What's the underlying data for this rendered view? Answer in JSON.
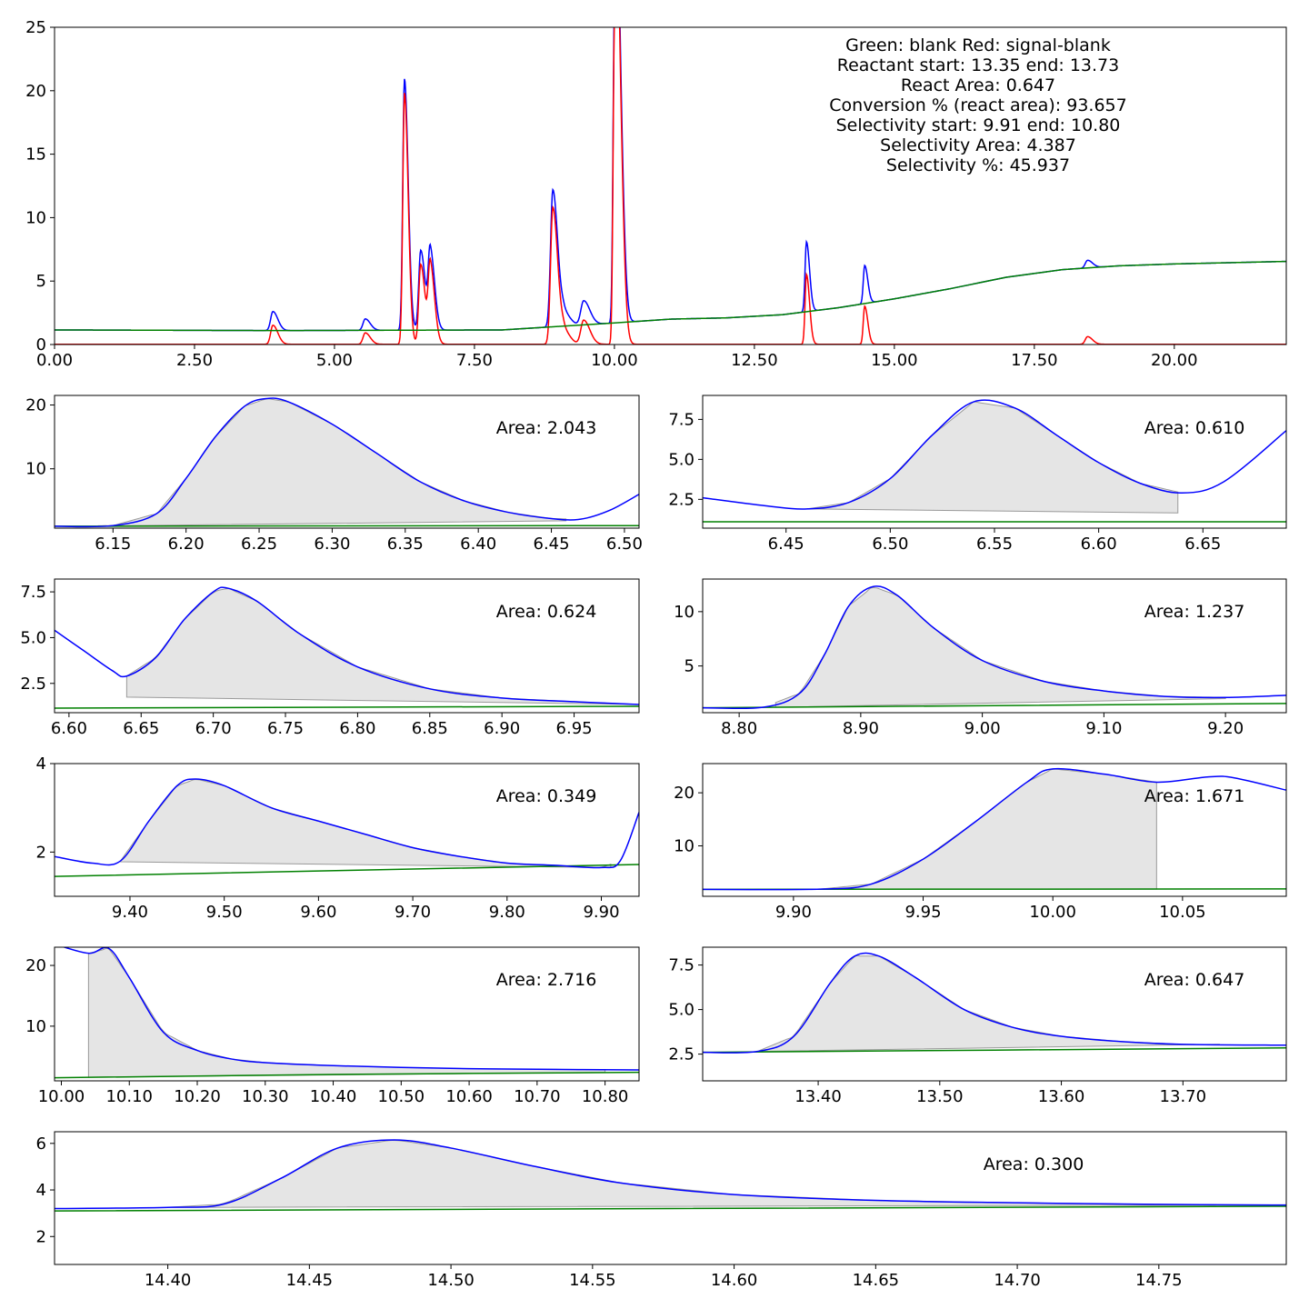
{
  "chart_data": [
    {
      "type": "line",
      "id": "overview",
      "xlim": [
        0,
        22
      ],
      "ylim": [
        0,
        25
      ],
      "xticks": [
        0,
        2.5,
        5,
        7.5,
        10,
        12.5,
        15,
        17.5,
        20
      ],
      "xtick_labels": [
        "0.00",
        "2.50",
        "5.00",
        "7.50",
        "10.00",
        "12.50",
        "15.00",
        "17.50",
        "20.00"
      ],
      "yticks": [
        0,
        5,
        10,
        15,
        20,
        25
      ],
      "ytick_labels": [
        "0",
        "5",
        "10",
        "15",
        "20",
        "25"
      ],
      "grid": false,
      "colors": {
        "signal": "#0000ff",
        "blank": "#008000",
        "difference": "#ff0000"
      },
      "annotation": [
        "Green: blank Red: signal-blank",
        "Reactant start: 13.35  end: 13.73",
        "React Area: 0.647",
        "Conversion % (react area): 93.657",
        "Selectivity start: 9.91  end: 10.80",
        "Selectivity Area: 4.387",
        "Selectivity %: 45.937"
      ],
      "baseline": [
        [
          0,
          1.15
        ],
        [
          4,
          1.1
        ],
        [
          8,
          1.15
        ],
        [
          10,
          1.7
        ],
        [
          11,
          2.0
        ],
        [
          12,
          2.1
        ],
        [
          13,
          2.35
        ],
        [
          14,
          2.9
        ],
        [
          15,
          3.6
        ],
        [
          16,
          4.4
        ],
        [
          17,
          5.3
        ],
        [
          18,
          5.9
        ],
        [
          19,
          6.2
        ],
        [
          20,
          6.35
        ],
        [
          22,
          6.55
        ]
      ],
      "peaks": [
        {
          "t": 3.9,
          "h": 1.5,
          "w": 0.04
        },
        {
          "t": 5.55,
          "h": 0.9,
          "w": 0.04
        },
        {
          "t": 6.25,
          "h": 19.8,
          "w": 0.03
        },
        {
          "t": 6.54,
          "h": 6.3,
          "w": 0.035
        },
        {
          "t": 6.71,
          "h": 6.2,
          "w": 0.035
        },
        {
          "t": 8.9,
          "h": 10.8,
          "w": 0.04
        },
        {
          "t": 9.1,
          "h": 1.0,
          "w": 0.05
        },
        {
          "t": 9.45,
          "h": 1.9,
          "w": 0.05
        },
        {
          "t": 10.0,
          "h": 23.0,
          "w": 0.025
        },
        {
          "t": 10.07,
          "h": 20.5,
          "w": 0.035
        },
        {
          "t": 13.43,
          "h": 5.5,
          "w": 0.025
        },
        {
          "t": 14.47,
          "h": 3.0,
          "w": 0.025
        },
        {
          "t": 18.45,
          "h": 0.6,
          "w": 0.04
        }
      ]
    },
    {
      "type": "line",
      "id": "zoom-1",
      "area_label": "Area: 2.043",
      "xlim": [
        6.11,
        6.51
      ],
      "ylim": [
        0.7,
        21.5
      ],
      "xticks": [
        6.15,
        6.2,
        6.25,
        6.3,
        6.35,
        6.4,
        6.45,
        6.5
      ],
      "xtick_labels": [
        "6.15",
        "6.20",
        "6.25",
        "6.30",
        "6.35",
        "6.40",
        "6.45",
        "6.50"
      ],
      "yticks": [
        10,
        20
      ],
      "ytick_labels": [
        "10",
        "20"
      ],
      "signal": [
        [
          6.11,
          1.0
        ],
        [
          6.15,
          1.1
        ],
        [
          6.18,
          3.0
        ],
        [
          6.2,
          8.5
        ],
        [
          6.22,
          15.0
        ],
        [
          6.24,
          19.8
        ],
        [
          6.255,
          21.0
        ],
        [
          6.27,
          20.5
        ],
        [
          6.3,
          17.0
        ],
        [
          6.33,
          12.5
        ],
        [
          6.36,
          8.0
        ],
        [
          6.39,
          5.0
        ],
        [
          6.42,
          3.2
        ],
        [
          6.45,
          2.2
        ],
        [
          6.47,
          2.1
        ],
        [
          6.49,
          3.5
        ],
        [
          6.51,
          6.0
        ]
      ],
      "blank": [
        [
          6.11,
          1.0
        ],
        [
          6.51,
          1.1
        ]
      ],
      "fill_start": 6.14,
      "fill_end": 6.46,
      "fill_base": [
        1.05,
        1.85
      ]
    },
    {
      "type": "line",
      "id": "zoom-2",
      "area_label": "Area: 0.610",
      "xlim": [
        6.41,
        6.69
      ],
      "ylim": [
        0.7,
        9.0
      ],
      "xticks": [
        6.45,
        6.5,
        6.55,
        6.6,
        6.65
      ],
      "xtick_labels": [
        "6.45",
        "6.50",
        "6.55",
        "6.60",
        "6.65"
      ],
      "yticks": [
        2.5,
        5.0,
        7.5
      ],
      "ytick_labels": [
        "2.5",
        "5.0",
        "7.5"
      ],
      "signal": [
        [
          6.41,
          2.6
        ],
        [
          6.44,
          2.1
        ],
        [
          6.46,
          1.9
        ],
        [
          6.48,
          2.3
        ],
        [
          6.5,
          3.8
        ],
        [
          6.52,
          6.5
        ],
        [
          6.54,
          8.6
        ],
        [
          6.56,
          8.2
        ],
        [
          6.58,
          6.5
        ],
        [
          6.6,
          4.8
        ],
        [
          6.62,
          3.5
        ],
        [
          6.64,
          2.9
        ],
        [
          6.66,
          3.6
        ],
        [
          6.69,
          6.8
        ]
      ],
      "blank": [
        [
          6.41,
          1.1
        ],
        [
          6.69,
          1.1
        ]
      ],
      "fill_start": 6.46,
      "fill_end": 6.638,
      "fill_base": [
        1.9,
        1.65
      ]
    },
    {
      "type": "line",
      "id": "zoom-3",
      "area_label": "Area: 0.624",
      "xlim": [
        6.59,
        6.995
      ],
      "ylim": [
        0.9,
        8.2
      ],
      "xticks": [
        6.6,
        6.65,
        6.7,
        6.75,
        6.8,
        6.85,
        6.9,
        6.95
      ],
      "xtick_labels": [
        "6.60",
        "6.65",
        "6.70",
        "6.75",
        "6.80",
        "6.85",
        "6.90",
        "6.95"
      ],
      "yticks": [
        2.5,
        5.0,
        7.5
      ],
      "ytick_labels": [
        "2.5",
        "5.0",
        "7.5"
      ],
      "signal": [
        [
          6.59,
          5.4
        ],
        [
          6.61,
          4.3
        ],
        [
          6.63,
          3.2
        ],
        [
          6.64,
          2.9
        ],
        [
          6.66,
          3.9
        ],
        [
          6.68,
          6.0
        ],
        [
          6.7,
          7.5
        ],
        [
          6.71,
          7.7
        ],
        [
          6.73,
          7.0
        ],
        [
          6.76,
          5.2
        ],
        [
          6.8,
          3.4
        ],
        [
          6.85,
          2.2
        ],
        [
          6.9,
          1.7
        ],
        [
          6.95,
          1.5
        ],
        [
          6.995,
          1.35
        ]
      ],
      "blank": [
        [
          6.59,
          1.15
        ],
        [
          6.995,
          1.25
        ]
      ],
      "fill_start": 6.64,
      "fill_end": 6.995,
      "fill_base": [
        1.75,
        1.35
      ]
    },
    {
      "type": "line",
      "id": "zoom-4",
      "area_label": "Area: 1.237",
      "xlim": [
        8.77,
        9.25
      ],
      "ylim": [
        0.7,
        13.0
      ],
      "xticks": [
        8.8,
        8.9,
        9.0,
        9.1,
        9.2
      ],
      "xtick_labels": [
        "8.80",
        "8.90",
        "9.00",
        "9.10",
        "9.20"
      ],
      "yticks": [
        5,
        10
      ],
      "ytick_labels": [
        "5",
        "10"
      ],
      "signal": [
        [
          8.77,
          1.15
        ],
        [
          8.82,
          1.2
        ],
        [
          8.85,
          2.5
        ],
        [
          8.87,
          6.0
        ],
        [
          8.89,
          10.5
        ],
        [
          8.91,
          12.3
        ],
        [
          8.93,
          11.5
        ],
        [
          8.96,
          8.5
        ],
        [
          9.0,
          5.5
        ],
        [
          9.05,
          3.6
        ],
        [
          9.1,
          2.7
        ],
        [
          9.15,
          2.2
        ],
        [
          9.2,
          2.1
        ],
        [
          9.25,
          2.3
        ]
      ],
      "blank": [
        [
          8.77,
          1.15
        ],
        [
          9.25,
          1.55
        ]
      ],
      "fill_start": 8.83,
      "fill_end": 9.2,
      "fill_base": [
        1.2,
        2.0
      ]
    },
    {
      "type": "line",
      "id": "zoom-5",
      "area_label": "Area: 0.349",
      "xlim": [
        9.32,
        9.94
      ],
      "ylim": [
        1.0,
        4.0
      ],
      "xticks": [
        9.4,
        9.5,
        9.6,
        9.7,
        9.8,
        9.9
      ],
      "xtick_labels": [
        "9.40",
        "9.50",
        "9.60",
        "9.70",
        "9.80",
        "9.90"
      ],
      "yticks": [
        2,
        4
      ],
      "ytick_labels": [
        "2",
        "4"
      ],
      "signal": [
        [
          9.32,
          1.9
        ],
        [
          9.36,
          1.75
        ],
        [
          9.39,
          1.8
        ],
        [
          9.42,
          2.7
        ],
        [
          9.45,
          3.5
        ],
        [
          9.47,
          3.65
        ],
        [
          9.5,
          3.5
        ],
        [
          9.55,
          3.0
        ],
        [
          9.6,
          2.7
        ],
        [
          9.65,
          2.4
        ],
        [
          9.7,
          2.1
        ],
        [
          9.75,
          1.9
        ],
        [
          9.8,
          1.75
        ],
        [
          9.85,
          1.7
        ],
        [
          9.9,
          1.65
        ],
        [
          9.92,
          1.8
        ],
        [
          9.94,
          2.9
        ]
      ],
      "blank": [
        [
          9.32,
          1.45
        ],
        [
          9.94,
          1.72
        ]
      ],
      "fill_start": 9.39,
      "fill_end": 9.91,
      "fill_base": [
        1.78,
        1.65
      ]
    },
    {
      "type": "line",
      "id": "zoom-6",
      "area_label": "Area: 1.671",
      "xlim": [
        9.865,
        10.09
      ],
      "ylim": [
        0.5,
        25.5
      ],
      "xticks": [
        9.9,
        9.95,
        10.0,
        10.05
      ],
      "xtick_labels": [
        "9.90",
        "9.95",
        "10.00",
        "10.05"
      ],
      "yticks": [
        10,
        20
      ],
      "ytick_labels": [
        "10",
        "20"
      ],
      "signal": [
        [
          9.865,
          1.8
        ],
        [
          9.91,
          1.85
        ],
        [
          9.93,
          2.8
        ],
        [
          9.95,
          7.5
        ],
        [
          9.97,
          14.5
        ],
        [
          9.99,
          22.0
        ],
        [
          10.0,
          24.5
        ],
        [
          10.02,
          23.5
        ],
        [
          10.04,
          22.0
        ],
        [
          10.06,
          23.0
        ],
        [
          10.07,
          22.8
        ],
        [
          10.09,
          20.5
        ]
      ],
      "blank": [
        [
          9.865,
          1.8
        ],
        [
          10.09,
          1.9
        ]
      ],
      "fill_start": 9.91,
      "fill_end": 10.04,
      "fill_base": [
        1.85,
        1.85
      ]
    },
    {
      "type": "line",
      "id": "zoom-7",
      "area_label": "Area: 2.716",
      "xlim": [
        9.99,
        10.85
      ],
      "ylim": [
        1.0,
        23.0
      ],
      "xticks": [
        10.0,
        10.1,
        10.2,
        10.3,
        10.4,
        10.5,
        10.6,
        10.7,
        10.8
      ],
      "xtick_labels": [
        "10.00",
        "10.10",
        "10.20",
        "10.30",
        "10.40",
        "10.50",
        "10.60",
        "10.70",
        "10.80"
      ],
      "yticks": [
        10,
        20
      ],
      "ytick_labels": [
        "10",
        "20"
      ],
      "signal": [
        [
          9.99,
          23.5
        ],
        [
          10.04,
          22.0
        ],
        [
          10.07,
          22.8
        ],
        [
          10.1,
          18.0
        ],
        [
          10.15,
          9.0
        ],
        [
          10.2,
          6.0
        ],
        [
          10.25,
          4.6
        ],
        [
          10.3,
          4.0
        ],
        [
          10.4,
          3.5
        ],
        [
          10.5,
          3.2
        ],
        [
          10.6,
          3.0
        ],
        [
          10.7,
          2.9
        ],
        [
          10.85,
          2.8
        ]
      ],
      "blank": [
        [
          9.99,
          1.5
        ],
        [
          10.4,
          2.05
        ],
        [
          10.85,
          2.4
        ]
      ],
      "fill_start": 10.04,
      "fill_end": 10.8,
      "fill_base": [
        1.6,
        2.4
      ]
    },
    {
      "type": "line",
      "id": "zoom-8",
      "area_label": "Area: 0.647",
      "xlim": [
        13.305,
        13.785
      ],
      "ylim": [
        1.0,
        8.5
      ],
      "xticks": [
        13.4,
        13.5,
        13.6,
        13.7
      ],
      "xtick_labels": [
        "13.40",
        "13.50",
        "13.60",
        "13.70"
      ],
      "yticks": [
        2.5,
        5.0,
        7.5
      ],
      "ytick_labels": [
        "2.5",
        "5.0",
        "7.5"
      ],
      "signal": [
        [
          13.305,
          2.6
        ],
        [
          13.35,
          2.65
        ],
        [
          13.38,
          3.5
        ],
        [
          13.41,
          6.5
        ],
        [
          13.43,
          8.0
        ],
        [
          13.45,
          8.0
        ],
        [
          13.48,
          6.8
        ],
        [
          13.52,
          5.0
        ],
        [
          13.56,
          4.0
        ],
        [
          13.6,
          3.5
        ],
        [
          13.65,
          3.2
        ],
        [
          13.7,
          3.05
        ],
        [
          13.785,
          3.0
        ]
      ],
      "blank": [
        [
          13.305,
          2.6
        ],
        [
          13.785,
          2.85
        ]
      ],
      "fill_start": 13.35,
      "fill_end": 13.73,
      "fill_base": [
        2.65,
        3.05
      ]
    },
    {
      "type": "line",
      "id": "zoom-9",
      "area_label": "Area: 0.300",
      "xlim": [
        14.36,
        14.795
      ],
      "ylim": [
        0.8,
        6.5
      ],
      "xticks": [
        14.4,
        14.45,
        14.5,
        14.55,
        14.6,
        14.65,
        14.7,
        14.75
      ],
      "xtick_labels": [
        "14.40",
        "14.45",
        "14.50",
        "14.55",
        "14.60",
        "14.65",
        "14.70",
        "14.75"
      ],
      "yticks": [
        2,
        4,
        6
      ],
      "ytick_labels": [
        "2",
        "4",
        "6"
      ],
      "signal": [
        [
          14.36,
          3.2
        ],
        [
          14.4,
          3.25
        ],
        [
          14.42,
          3.4
        ],
        [
          14.44,
          4.5
        ],
        [
          14.46,
          5.8
        ],
        [
          14.48,
          6.15
        ],
        [
          14.5,
          5.8
        ],
        [
          14.53,
          5.0
        ],
        [
          14.56,
          4.3
        ],
        [
          14.6,
          3.8
        ],
        [
          14.65,
          3.55
        ],
        [
          14.7,
          3.45
        ],
        [
          14.75,
          3.38
        ],
        [
          14.795,
          3.35
        ]
      ],
      "blank": [
        [
          14.36,
          3.1
        ],
        [
          14.795,
          3.3
        ]
      ],
      "fill_start": 14.4,
      "fill_end": 14.77,
      "fill_base": [
        3.25,
        3.35
      ]
    }
  ]
}
